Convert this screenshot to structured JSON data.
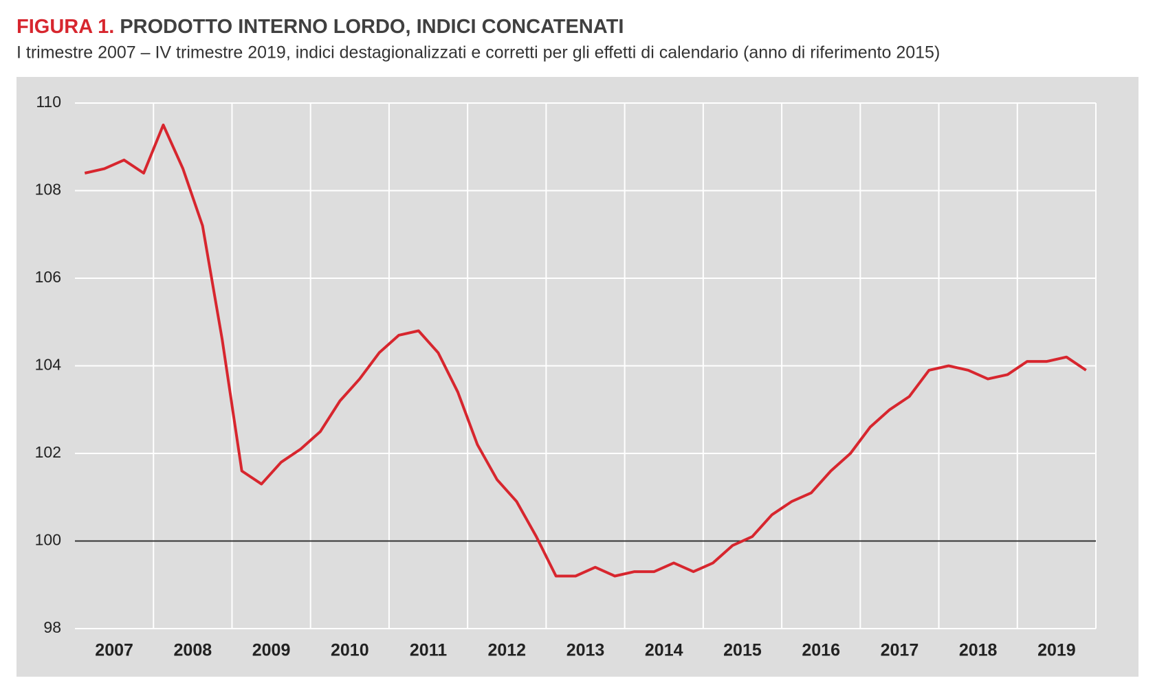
{
  "chart_data": {
    "type": "line",
    "title_prefix": "FIGURA 1.",
    "title": "PRODOTTO INTERNO LORDO, INDICI CONCATENATI",
    "subtitle": "I trimestre 2007 – IV trimestre 2019, indici destagionalizzati e corretti per gli effetti di calendario (anno di riferimento 2015)",
    "categories": [
      "2007",
      null,
      null,
      null,
      "2008",
      null,
      null,
      null,
      "2009",
      null,
      null,
      null,
      "2010",
      null,
      null,
      null,
      "2011",
      null,
      null,
      null,
      "2012",
      null,
      null,
      null,
      "2013",
      null,
      null,
      null,
      "2014",
      null,
      null,
      null,
      "2015",
      null,
      null,
      null,
      "2016",
      null,
      null,
      null,
      "2017",
      null,
      null,
      null,
      "2018",
      null,
      null,
      null,
      "2019",
      null,
      null,
      null
    ],
    "values": [
      108.4,
      108.5,
      108.7,
      108.4,
      109.5,
      108.5,
      107.2,
      104.6,
      101.6,
      101.3,
      101.8,
      102.1,
      102.5,
      103.2,
      103.7,
      104.3,
      104.7,
      104.8,
      104.3,
      103.4,
      102.2,
      101.4,
      100.9,
      100.1,
      99.2,
      99.2,
      99.4,
      99.2,
      99.3,
      99.3,
      99.5,
      99.3,
      99.5,
      99.9,
      100.1,
      100.6,
      100.9,
      101.1,
      101.6,
      102.0,
      102.6,
      103.0,
      103.3,
      103.9,
      104.0,
      103.9,
      103.7,
      103.8,
      104.1,
      104.1,
      104.2,
      103.9
    ],
    "color": "#d7262e",
    "ylim": [
      98,
      110
    ],
    "yticks": [
      98,
      100,
      102,
      104,
      106,
      108,
      110
    ],
    "reference_line": 100,
    "grid": true
  }
}
